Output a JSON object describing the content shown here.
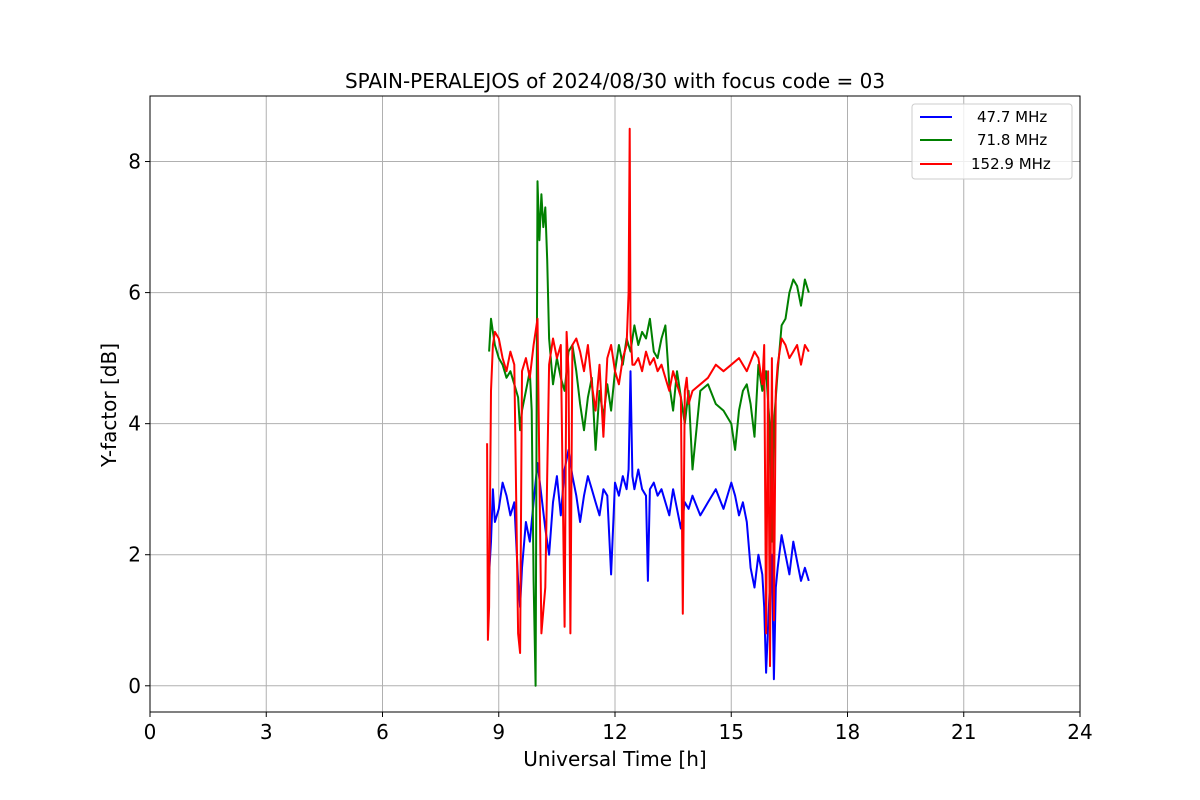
{
  "chart_data": {
    "type": "line",
    "title": "SPAIN-PERALEJOS of 2024/08/30 with focus code = 03",
    "xlabel": "Universal Time [h]",
    "ylabel": "Y-factor [dB]",
    "xlim": [
      0,
      24
    ],
    "ylim": [
      -0.4,
      9.0
    ],
    "xticks": [
      0,
      3,
      6,
      9,
      12,
      15,
      18,
      21,
      24
    ],
    "yticks": [
      0,
      2,
      4,
      6,
      8
    ],
    "grid": true,
    "legend_position": "top-right",
    "series": [
      {
        "name": "47.7 MHz",
        "color": "#0000ff",
        "x": [
          8.75,
          8.8,
          8.85,
          8.9,
          9.0,
          9.1,
          9.2,
          9.3,
          9.4,
          9.5,
          9.55,
          9.6,
          9.7,
          9.8,
          9.9,
          10.0,
          10.1,
          10.2,
          10.3,
          10.4,
          10.5,
          10.6,
          10.7,
          10.8,
          10.9,
          11.0,
          11.1,
          11.2,
          11.3,
          11.4,
          11.5,
          11.6,
          11.7,
          11.8,
          11.9,
          12.0,
          12.1,
          12.2,
          12.3,
          12.35,
          12.4,
          12.45,
          12.5,
          12.6,
          12.7,
          12.8,
          12.85,
          12.9,
          13.0,
          13.1,
          13.2,
          13.3,
          13.4,
          13.5,
          13.6,
          13.7,
          13.8,
          13.9,
          14.0,
          14.2,
          14.4,
          14.6,
          14.8,
          15.0,
          15.1,
          15.2,
          15.3,
          15.4,
          15.5,
          15.6,
          15.7,
          15.8,
          15.85,
          15.9,
          16.0,
          16.05,
          16.1,
          16.15,
          16.2,
          16.3,
          16.4,
          16.5,
          16.6,
          16.7,
          16.8,
          16.9,
          17.0
        ],
        "y": [
          1.7,
          2.2,
          3.0,
          2.5,
          2.7,
          3.1,
          2.9,
          2.6,
          2.8,
          1.6,
          1.2,
          1.8,
          2.5,
          2.2,
          2.8,
          3.4,
          2.9,
          2.4,
          2.0,
          2.8,
          3.2,
          2.6,
          3.3,
          3.6,
          3.2,
          2.9,
          2.5,
          2.9,
          3.2,
          3.0,
          2.8,
          2.6,
          3.0,
          2.9,
          1.7,
          3.1,
          2.9,
          3.2,
          3.0,
          3.3,
          4.8,
          3.2,
          3.0,
          3.3,
          3.0,
          2.9,
          1.6,
          3.0,
          3.1,
          2.9,
          3.0,
          2.8,
          2.6,
          3.0,
          2.7,
          2.4,
          2.8,
          2.7,
          2.9,
          2.6,
          2.8,
          3.0,
          2.7,
          3.1,
          2.9,
          2.6,
          2.8,
          2.5,
          1.8,
          1.5,
          2.0,
          1.7,
          1.2,
          0.2,
          1.6,
          2.0,
          0.1,
          1.5,
          1.8,
          2.3,
          2.0,
          1.7,
          2.2,
          1.9,
          1.6,
          1.8,
          1.6
        ]
      },
      {
        "name": "71.8 MHz",
        "color": "#008000",
        "x": [
          8.75,
          8.8,
          8.85,
          8.9,
          9.0,
          9.1,
          9.2,
          9.3,
          9.4,
          9.5,
          9.55,
          9.6,
          9.7,
          9.8,
          9.85,
          9.9,
          9.95,
          10.0,
          10.05,
          10.1,
          10.15,
          10.2,
          10.25,
          10.3,
          10.4,
          10.5,
          10.6,
          10.7,
          10.8,
          10.9,
          11.0,
          11.1,
          11.2,
          11.3,
          11.4,
          11.5,
          11.6,
          11.7,
          11.8,
          11.9,
          12.0,
          12.1,
          12.2,
          12.3,
          12.4,
          12.5,
          12.6,
          12.7,
          12.8,
          12.9,
          13.0,
          13.1,
          13.2,
          13.3,
          13.4,
          13.5,
          13.6,
          13.7,
          13.8,
          13.9,
          14.0,
          14.2,
          14.4,
          14.6,
          14.8,
          15.0,
          15.1,
          15.2,
          15.3,
          15.4,
          15.5,
          15.6,
          15.7,
          15.8,
          15.9,
          16.0,
          16.05,
          16.1,
          16.2,
          16.3,
          16.4,
          16.5,
          16.6,
          16.7,
          16.8,
          16.9,
          17.0
        ],
        "y": [
          5.1,
          5.6,
          5.4,
          5.2,
          5.0,
          4.9,
          4.7,
          4.8,
          4.6,
          4.4,
          3.9,
          4.2,
          4.5,
          4.8,
          4.2,
          1.6,
          0.0,
          7.7,
          6.8,
          7.5,
          7.0,
          7.3,
          6.5,
          5.3,
          4.6,
          5.0,
          4.7,
          4.5,
          5.1,
          5.2,
          4.8,
          4.3,
          3.9,
          4.4,
          4.7,
          3.6,
          4.5,
          4.1,
          4.6,
          4.2,
          4.8,
          5.2,
          4.9,
          5.3,
          5.1,
          5.5,
          5.2,
          5.4,
          5.3,
          5.6,
          5.1,
          5.0,
          5.3,
          5.5,
          4.6,
          4.2,
          4.8,
          4.4,
          4.0,
          4.5,
          3.3,
          4.5,
          4.6,
          4.3,
          4.2,
          4.0,
          3.6,
          4.2,
          4.5,
          4.6,
          4.3,
          3.8,
          4.9,
          4.5,
          4.8,
          3.9,
          2.2,
          4.0,
          4.8,
          5.5,
          5.6,
          6.0,
          6.2,
          6.1,
          5.8,
          6.2,
          6.0
        ]
      },
      {
        "name": "152.9 MHz",
        "color": "#ff0000",
        "x": [
          8.7,
          8.72,
          8.75,
          8.8,
          8.85,
          8.9,
          9.0,
          9.1,
          9.2,
          9.3,
          9.4,
          9.5,
          9.55,
          9.6,
          9.7,
          9.8,
          9.9,
          10.0,
          10.1,
          10.2,
          10.3,
          10.4,
          10.5,
          10.6,
          10.7,
          10.75,
          10.8,
          10.85,
          10.9,
          11.0,
          11.1,
          11.2,
          11.3,
          11.4,
          11.5,
          11.6,
          11.7,
          11.8,
          11.9,
          12.0,
          12.1,
          12.2,
          12.3,
          12.35,
          12.38,
          12.4,
          12.45,
          12.5,
          12.6,
          12.7,
          12.8,
          12.9,
          13.0,
          13.1,
          13.2,
          13.3,
          13.4,
          13.5,
          13.6,
          13.7,
          13.75,
          13.8,
          13.85,
          13.9,
          14.0,
          14.2,
          14.4,
          14.6,
          14.8,
          15.0,
          15.2,
          15.4,
          15.6,
          15.7,
          15.8,
          15.85,
          15.9,
          15.95,
          16.0,
          16.05,
          16.1,
          16.15,
          16.2,
          16.3,
          16.4,
          16.5,
          16.6,
          16.7,
          16.8,
          16.9,
          17.0
        ],
        "y": [
          3.7,
          0.7,
          1.2,
          4.5,
          5.2,
          5.4,
          5.3,
          5.0,
          4.8,
          5.1,
          4.9,
          0.8,
          0.5,
          4.8,
          5.0,
          4.7,
          5.2,
          5.6,
          0.8,
          1.5,
          4.9,
          5.3,
          5.0,
          5.2,
          0.9,
          5.4,
          4.8,
          0.8,
          5.2,
          5.3,
          5.1,
          4.8,
          5.2,
          4.6,
          4.2,
          4.9,
          3.8,
          5.0,
          5.2,
          4.8,
          4.6,
          5.0,
          5.2,
          6.0,
          8.5,
          5.4,
          4.9,
          4.9,
          5.0,
          4.8,
          5.1,
          4.9,
          5.0,
          4.8,
          4.9,
          4.7,
          4.5,
          4.8,
          4.6,
          4.4,
          1.1,
          4.5,
          4.7,
          4.3,
          4.5,
          4.6,
          4.7,
          4.9,
          4.8,
          4.9,
          5.0,
          4.8,
          5.1,
          5.0,
          4.6,
          5.2,
          0.8,
          4.8,
          0.3,
          5.0,
          1.0,
          4.5,
          4.9,
          5.3,
          5.2,
          5.0,
          5.1,
          5.2,
          4.9,
          5.2,
          5.1
        ]
      }
    ]
  }
}
